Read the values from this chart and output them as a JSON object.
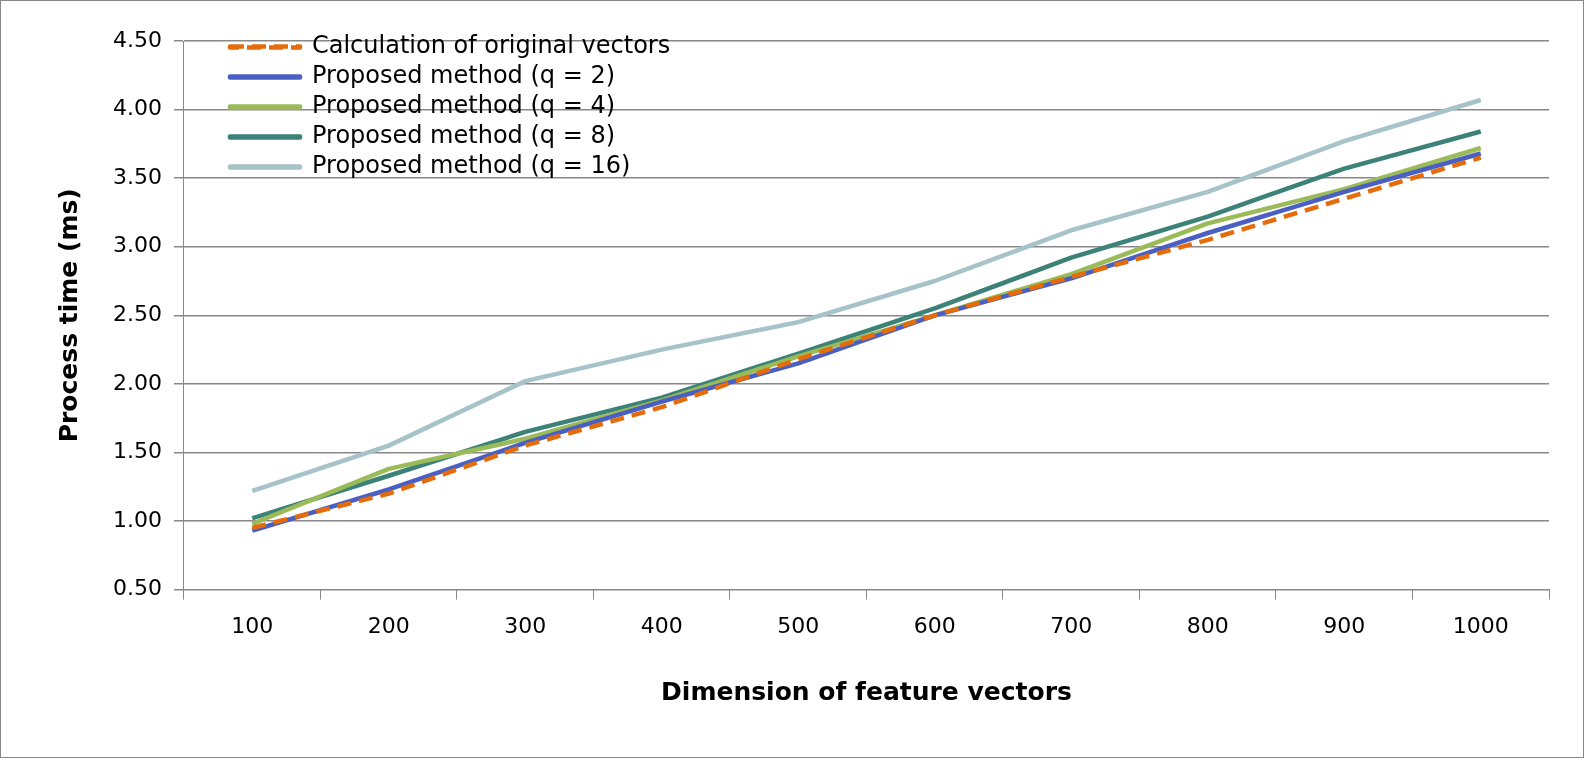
{
  "chart_data": {
    "type": "line",
    "xlabel": "Dimension of feature vectors",
    "ylabel": "Process time (ms)",
    "categories": [
      "100",
      "200",
      "300",
      "400",
      "500",
      "600",
      "700",
      "800",
      "900",
      "1000"
    ],
    "series": [
      {
        "name": "Calculation of original vectors",
        "color": "#e46c0a",
        "line_style": "dashed",
        "values": [
          0.95,
          1.2,
          1.55,
          1.83,
          2.18,
          2.5,
          2.78,
          3.05,
          3.35,
          3.65
        ]
      },
      {
        "name": "Proposed method (q = 2)",
        "color": "#4a5fc4",
        "values": [
          0.93,
          1.23,
          1.57,
          1.87,
          2.15,
          2.5,
          2.77,
          3.1,
          3.4,
          3.68
        ]
      },
      {
        "name": "Proposed method (q = 4)",
        "color": "#9bbb59",
        "values": [
          0.98,
          1.38,
          1.6,
          1.88,
          2.2,
          2.5,
          2.8,
          3.17,
          3.42,
          3.72
        ]
      },
      {
        "name": "Proposed method (q = 8)",
        "color": "#3c8278",
        "values": [
          1.02,
          1.33,
          1.65,
          1.9,
          2.22,
          2.55,
          2.92,
          3.22,
          3.57,
          3.84
        ]
      },
      {
        "name": "Proposed method (q = 16)",
        "color": "#a5c3c8",
        "values": [
          1.22,
          1.55,
          2.02,
          2.25,
          2.45,
          2.75,
          3.12,
          3.4,
          3.77,
          4.07
        ]
      }
    ],
    "ylim": [
      0.5,
      4.5
    ],
    "yticks": [
      {
        "value": 0.5,
        "label": "0.50"
      },
      {
        "value": 1,
        "label": "1.00"
      },
      {
        "value": 1.5,
        "label": "1.50"
      },
      {
        "value": 2,
        "label": "2.00"
      },
      {
        "value": 2.5,
        "label": "2.50"
      },
      {
        "value": 3,
        "label": "3.00"
      },
      {
        "value": 3.5,
        "label": "3.50"
      },
      {
        "value": 4,
        "label": "4.00"
      },
      {
        "value": 4.5,
        "label": "4.50"
      }
    ],
    "grid": "y",
    "legend": "top left",
    "marker": "none",
    "line_style": "solid"
  }
}
